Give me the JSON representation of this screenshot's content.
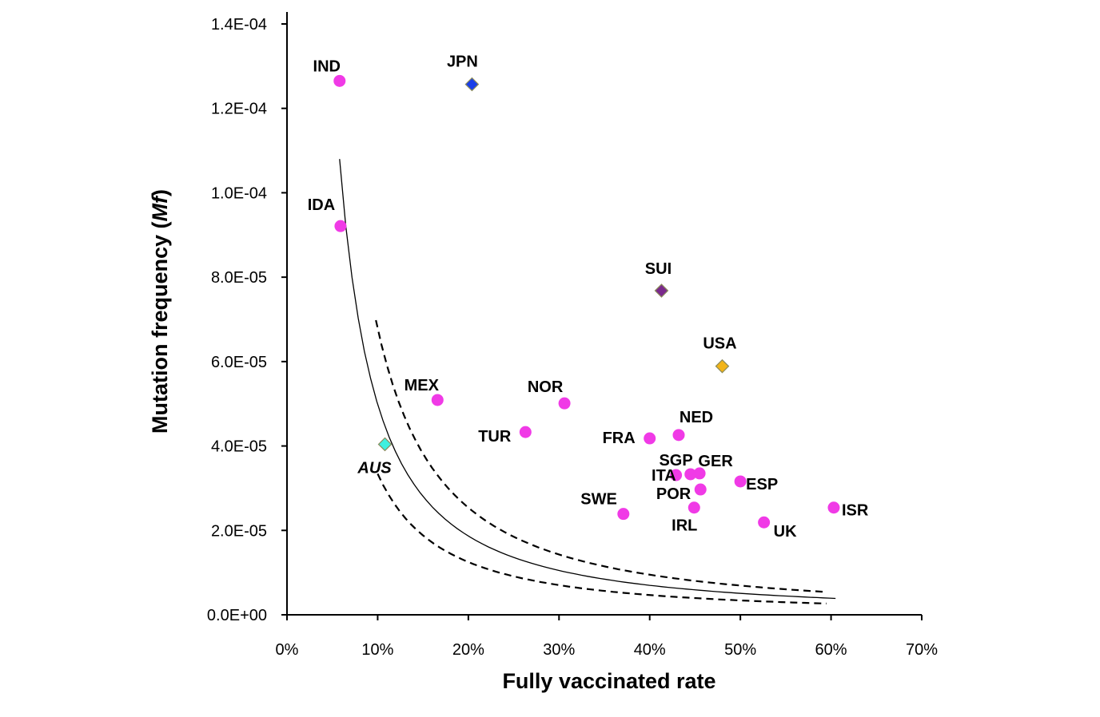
{
  "chart_data": {
    "type": "scatter",
    "title": "",
    "xlabel": "Fully vaccinated rate",
    "ylabel_main": "Mutation frequency (",
    "ylabel_italic": "Mf",
    "ylabel_end": ")",
    "xlim": [
      0,
      0.7
    ],
    "ylim": [
      0,
      0.00014
    ],
    "x_ticks": [
      0,
      0.1,
      0.2,
      0.3,
      0.4,
      0.5,
      0.6,
      0.7
    ],
    "x_tick_labels": [
      "0%",
      "10%",
      "20%",
      "30%",
      "40%",
      "50%",
      "60%",
      "70%"
    ],
    "y_ticks": [
      0,
      2e-05,
      4e-05,
      6e-05,
      8e-05,
      0.0001,
      0.00012,
      0.00014
    ],
    "y_tick_labels": [
      "0.0E+00",
      "2.0E-05",
      "4.0E-05",
      "6.0E-05",
      "8.0E-05",
      "1.0E-04",
      "1.2E-04",
      "1.4E-04"
    ],
    "grid": false,
    "points": [
      {
        "label": "IND",
        "x": 0.058,
        "y": 0.0001265,
        "marker": "circle",
        "color": "#f03ae6"
      },
      {
        "label": "IDA",
        "x": 0.059,
        "y": 9.21e-05,
        "marker": "circle",
        "color": "#f03ae6"
      },
      {
        "label": "MEX",
        "x": 0.166,
        "y": 5.09e-05,
        "marker": "circle",
        "color": "#f03ae6"
      },
      {
        "label": "TUR",
        "x": 0.263,
        "y": 4.33e-05,
        "marker": "circle",
        "color": "#f03ae6"
      },
      {
        "label": "NOR",
        "x": 0.306,
        "y": 5.01e-05,
        "marker": "circle",
        "color": "#f03ae6"
      },
      {
        "label": "SWE",
        "x": 0.371,
        "y": 2.39e-05,
        "marker": "circle",
        "color": "#f03ae6"
      },
      {
        "label": "FRA",
        "x": 0.4,
        "y": 4.18e-05,
        "marker": "circle",
        "color": "#f03ae6"
      },
      {
        "label": "NED",
        "x": 0.432,
        "y": 4.26e-05,
        "marker": "circle",
        "color": "#f03ae6"
      },
      {
        "label": "SGP",
        "x": 0.429,
        "y": 3.31e-05,
        "marker": "circle",
        "color": "#f03ae6"
      },
      {
        "label": "ITA",
        "x": 0.445,
        "y": 3.33e-05,
        "marker": "circle",
        "color": "#f03ae6"
      },
      {
        "label": "GER",
        "x": 0.455,
        "y": 3.35e-05,
        "marker": "circle",
        "color": "#f03ae6"
      },
      {
        "label": "POR",
        "x": 0.456,
        "y": 2.97e-05,
        "marker": "circle",
        "color": "#f03ae6"
      },
      {
        "label": "IRL",
        "x": 0.449,
        "y": 2.54e-05,
        "marker": "circle",
        "color": "#f03ae6"
      },
      {
        "label": "ESP",
        "x": 0.5,
        "y": 3.16e-05,
        "marker": "circle",
        "color": "#f03ae6"
      },
      {
        "label": "UK",
        "x": 0.526,
        "y": 2.19e-05,
        "marker": "circle",
        "color": "#f03ae6"
      },
      {
        "label": "ISR",
        "x": 0.603,
        "y": 2.54e-05,
        "marker": "circle",
        "color": "#f03ae6"
      },
      {
        "label": "JPN",
        "x": 0.204,
        "y": 0.0001257,
        "marker": "diamond",
        "color": "#1a3fe8"
      },
      {
        "label": "SUI",
        "x": 0.413,
        "y": 7.68e-05,
        "marker": "diamond",
        "color": "#7a2a8c"
      },
      {
        "label": "USA",
        "x": 0.48,
        "y": 5.89e-05,
        "marker": "diamond",
        "color": "#f2b418"
      },
      {
        "label": "AUS",
        "x": 0.108,
        "y": 4.04e-05,
        "marker": "diamond",
        "color": "#3ff0e0",
        "italic": true
      }
    ],
    "fit_curves": [
      {
        "style": "solid",
        "x_range": [
          0.058,
          0.605
        ],
        "a": 1.905e-06,
        "b": 1.418,
        "scale": 1.0
      },
      {
        "style": "dashed",
        "x_range": [
          0.098,
          0.595
        ],
        "a": 1.905e-06,
        "b": 1.418,
        "scale": 1.36
      },
      {
        "style": "dashed",
        "x_range": [
          0.1,
          0.595
        ],
        "a": 1.905e-06,
        "b": 1.418,
        "scale": 0.67
      }
    ]
  }
}
